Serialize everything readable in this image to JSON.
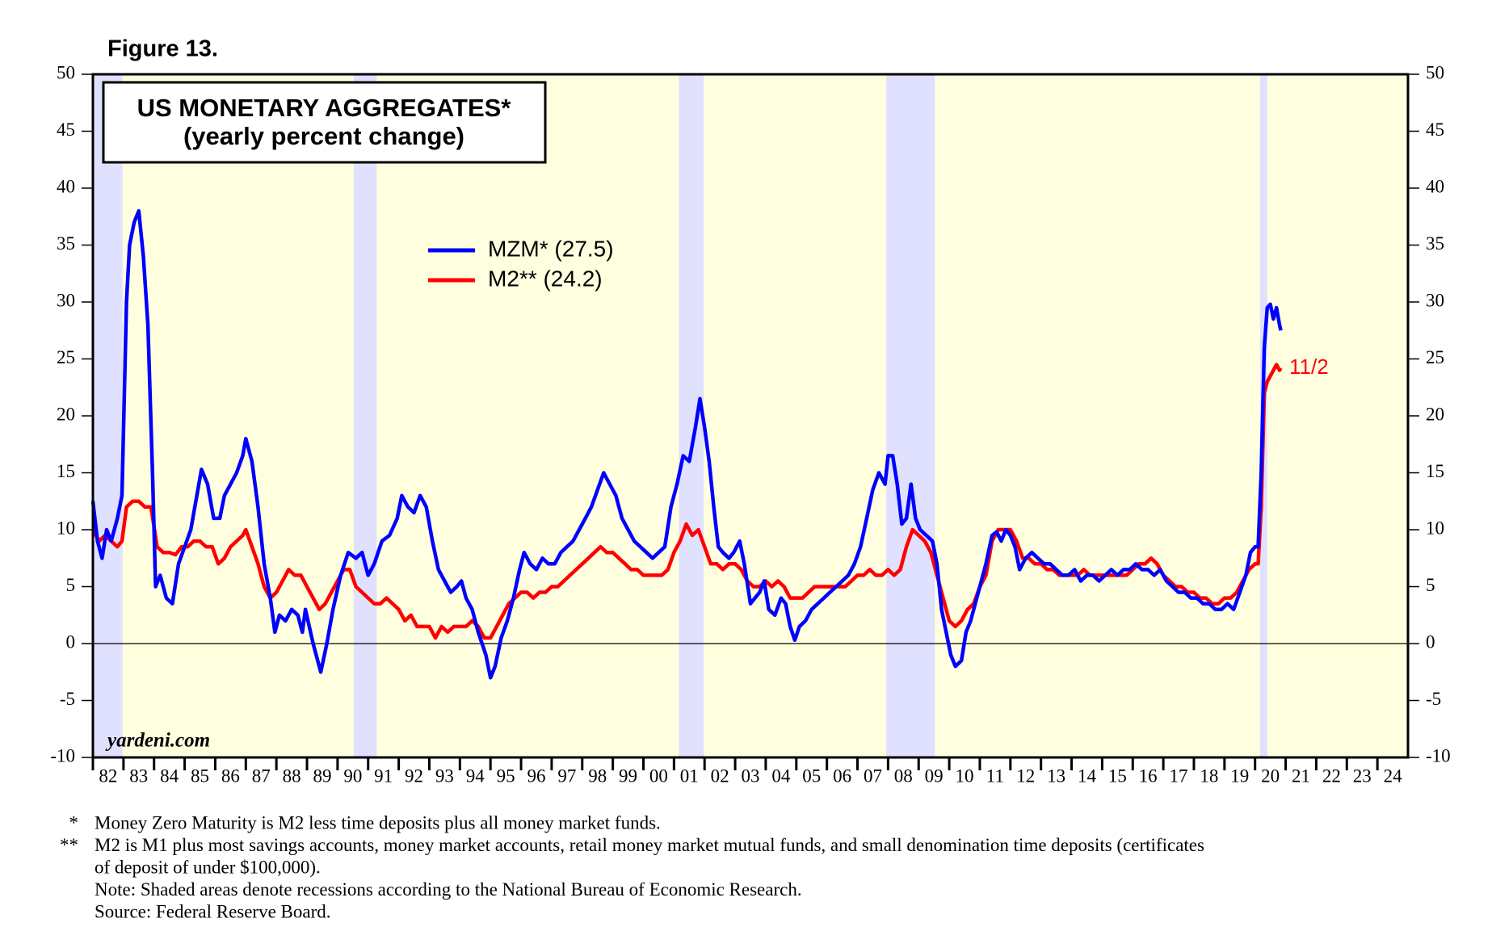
{
  "figure_label": "Figure 13.",
  "chart_data": {
    "type": "line",
    "title": "US MONETARY AGGREGATES*",
    "subtitle": "(yearly percent change)",
    "watermark": "yardeni.com",
    "annotation": {
      "text": "11/2",
      "color": "#ff0000"
    },
    "xlim": [
      1982,
      2025
    ],
    "xticks": [
      {
        "value": 1982,
        "label": "82"
      },
      {
        "value": 1983,
        "label": "83"
      },
      {
        "value": 1984,
        "label": "84"
      },
      {
        "value": 1985,
        "label": "85"
      },
      {
        "value": 1986,
        "label": "86"
      },
      {
        "value": 1987,
        "label": "87"
      },
      {
        "value": 1988,
        "label": "88"
      },
      {
        "value": 1989,
        "label": "89"
      },
      {
        "value": 1990,
        "label": "90"
      },
      {
        "value": 1991,
        "label": "91"
      },
      {
        "value": 1992,
        "label": "92"
      },
      {
        "value": 1993,
        "label": "93"
      },
      {
        "value": 1994,
        "label": "94"
      },
      {
        "value": 1995,
        "label": "95"
      },
      {
        "value": 1996,
        "label": "96"
      },
      {
        "value": 1997,
        "label": "97"
      },
      {
        "value": 1998,
        "label": "98"
      },
      {
        "value": 1999,
        "label": "99"
      },
      {
        "value": 2000,
        "label": "00"
      },
      {
        "value": 2001,
        "label": "01"
      },
      {
        "value": 2002,
        "label": "02"
      },
      {
        "value": 2003,
        "label": "03"
      },
      {
        "value": 2004,
        "label": "04"
      },
      {
        "value": 2005,
        "label": "05"
      },
      {
        "value": 2006,
        "label": "06"
      },
      {
        "value": 2007,
        "label": "07"
      },
      {
        "value": 2008,
        "label": "08"
      },
      {
        "value": 2009,
        "label": "09"
      },
      {
        "value": 2010,
        "label": "10"
      },
      {
        "value": 2011,
        "label": "11"
      },
      {
        "value": 2012,
        "label": "12"
      },
      {
        "value": 2013,
        "label": "13"
      },
      {
        "value": 2014,
        "label": "14"
      },
      {
        "value": 2015,
        "label": "15"
      },
      {
        "value": 2016,
        "label": "16"
      },
      {
        "value": 2017,
        "label": "17"
      },
      {
        "value": 2018,
        "label": "18"
      },
      {
        "value": 2019,
        "label": "19"
      },
      {
        "value": 2020,
        "label": "20"
      },
      {
        "value": 2021,
        "label": "21"
      },
      {
        "value": 2022,
        "label": "22"
      },
      {
        "value": 2023,
        "label": "23"
      },
      {
        "value": 2024,
        "label": "24"
      }
    ],
    "ylim": [
      -10,
      50
    ],
    "yticks": [
      -10,
      -5,
      0,
      5,
      10,
      15,
      20,
      25,
      30,
      35,
      40,
      45,
      50
    ],
    "y2lim": [
      -10,
      50
    ],
    "y2ticks": [
      -10,
      -5,
      0,
      5,
      10,
      15,
      20,
      25,
      30,
      35,
      40,
      45,
      50
    ],
    "background": "#ffffe0",
    "recession_color": "#e0e0ff",
    "recessions": [
      [
        1982,
        1982.97
      ],
      [
        1990.53,
        1991.28
      ],
      [
        2001.16,
        2001.97
      ],
      [
        2007.94,
        2009.53
      ],
      [
        2020.16,
        2020.4
      ]
    ],
    "series": [
      {
        "name": "MZM* (27.5)",
        "color": "#0000ff",
        "x": [
          1982.0,
          1982.15,
          1982.3,
          1982.45,
          1982.6,
          1982.8,
          1982.95,
          1983.1,
          1983.2,
          1983.35,
          1983.5,
          1983.65,
          1983.8,
          1983.95,
          1984.05,
          1984.2,
          1984.4,
          1984.6,
          1984.8,
          1985.0,
          1985.2,
          1985.4,
          1985.55,
          1985.75,
          1985.95,
          1986.15,
          1986.3,
          1986.5,
          1986.7,
          1986.9,
          1987.0,
          1987.2,
          1987.4,
          1987.6,
          1987.8,
          1987.95,
          1988.1,
          1988.3,
          1988.5,
          1988.7,
          1988.85,
          1988.95,
          1989.2,
          1989.45,
          1989.65,
          1989.85,
          1990.1,
          1990.35,
          1990.6,
          1990.8,
          1991.0,
          1991.2,
          1991.45,
          1991.7,
          1991.95,
          1992.1,
          1992.3,
          1992.5,
          1992.7,
          1992.9,
          1993.1,
          1993.3,
          1993.5,
          1993.7,
          1993.9,
          1994.05,
          1994.2,
          1994.4,
          1994.6,
          1994.85,
          1995.0,
          1995.15,
          1995.35,
          1995.55,
          1995.75,
          1995.95,
          1996.1,
          1996.3,
          1996.5,
          1996.7,
          1996.9,
          1997.1,
          1997.3,
          1997.5,
          1997.7,
          1997.9,
          1998.1,
          1998.3,
          1998.5,
          1998.7,
          1998.9,
          1999.1,
          1999.3,
          1999.5,
          1999.7,
          1999.9,
          2000.1,
          2000.3,
          2000.5,
          2000.7,
          2000.9,
          2001.1,
          2001.3,
          2001.5,
          2001.7,
          2001.85,
          2002.0,
          2002.15,
          2002.3,
          2002.45,
          2002.6,
          2002.8,
          2002.95,
          2003.15,
          2003.3,
          2003.5,
          2003.65,
          2003.8,
          2003.95,
          2004.1,
          2004.3,
          2004.5,
          2004.65,
          2004.8,
          2004.95,
          2005.1,
          2005.3,
          2005.5,
          2005.7,
          2005.9,
          2006.1,
          2006.3,
          2006.5,
          2006.7,
          2006.9,
          2007.1,
          2007.3,
          2007.5,
          2007.7,
          2007.9,
          2008.0,
          2008.15,
          2008.3,
          2008.45,
          2008.6,
          2008.75,
          2008.9,
          2009.05,
          2009.25,
          2009.45,
          2009.6,
          2009.75,
          2009.9,
          2010.05,
          2010.2,
          2010.4,
          2010.55,
          2010.7,
          2010.85,
          2011.0,
          2011.2,
          2011.4,
          2011.55,
          2011.7,
          2011.85,
          2012.0,
          2012.15,
          2012.3,
          2012.5,
          2012.7,
          2012.9,
          2013.1,
          2013.3,
          2013.5,
          2013.7,
          2013.9,
          2014.1,
          2014.3,
          2014.5,
          2014.7,
          2014.9,
          2015.1,
          2015.3,
          2015.5,
          2015.7,
          2015.9,
          2016.1,
          2016.3,
          2016.5,
          2016.7,
          2016.9,
          2017.1,
          2017.3,
          2017.5,
          2017.7,
          2017.9,
          2018.1,
          2018.3,
          2018.5,
          2018.7,
          2018.9,
          2019.1,
          2019.3,
          2019.5,
          2019.7,
          2019.85,
          2020.0,
          2020.1,
          2020.2,
          2020.3,
          2020.4,
          2020.5,
          2020.6,
          2020.7,
          2020.8,
          2020.84
        ],
        "values": [
          12.5,
          9,
          7.5,
          10,
          9,
          11,
          13,
          30,
          35,
          37,
          38,
          34,
          28,
          15,
          5,
          6,
          4,
          3.5,
          7,
          8.5,
          10,
          13,
          15.3,
          14,
          11,
          11,
          13,
          14,
          15,
          16.5,
          18,
          16,
          12,
          7,
          4,
          1,
          2.5,
          2,
          3,
          2.5,
          1,
          3,
          0,
          -2.5,
          0,
          3,
          6,
          8,
          7.5,
          8,
          6,
          7,
          9,
          9.5,
          11,
          13,
          12,
          11.5,
          13,
          12,
          9,
          6.5,
          5.5,
          4.5,
          5,
          5.5,
          4,
          3,
          1,
          -1,
          -3,
          -2,
          0.5,
          2,
          4,
          6.5,
          8,
          7,
          6.5,
          7.5,
          7,
          7,
          8,
          8.5,
          9,
          10,
          11,
          12,
          13.5,
          15,
          14,
          13,
          11,
          10,
          9,
          8.5,
          8,
          7.5,
          8,
          8.5,
          12,
          14,
          16.5,
          16,
          19,
          21.5,
          19,
          16,
          12,
          8.5,
          8,
          7.5,
          8,
          9,
          7,
          3.5,
          4,
          4.5,
          5.5,
          3,
          2.5,
          4,
          3.5,
          1.5,
          0.3,
          1.5,
          2,
          3,
          3.5,
          4,
          4.5,
          5,
          5.5,
          6,
          7,
          8.5,
          11,
          13.5,
          15,
          14,
          16.5,
          16.5,
          14,
          10.5,
          11,
          14,
          11,
          10,
          9.5,
          9,
          7,
          3,
          1,
          -1,
          -2,
          -1.5,
          1,
          2,
          3.5,
          5,
          7,
          9.5,
          9.8,
          9,
          10,
          9.5,
          8.5,
          6.5,
          7.5,
          8,
          7.5,
          7,
          7,
          6.5,
          6,
          6,
          6.5,
          5.5,
          6,
          6,
          5.5,
          6,
          6.5,
          6,
          6.5,
          6.5,
          7,
          6.5,
          6.5,
          6,
          6.5,
          5.5,
          5,
          4.5,
          4.5,
          4,
          4,
          3.5,
          3.5,
          3,
          3,
          3.5,
          3,
          4.5,
          6,
          8,
          8.5,
          8.5,
          15,
          26,
          29.5,
          29.8,
          28.5,
          29.5,
          28,
          27.5
        ]
      },
      {
        "name": "M2** (24.2)",
        "color": "#ff0000",
        "x": [
          1982.0,
          1982.2,
          1982.4,
          1982.6,
          1982.8,
          1982.95,
          1983.1,
          1983.3,
          1983.5,
          1983.7,
          1983.9,
          1984.1,
          1984.3,
          1984.5,
          1984.7,
          1984.9,
          1985.1,
          1985.3,
          1985.5,
          1985.7,
          1985.9,
          1986.1,
          1986.3,
          1986.5,
          1986.7,
          1986.9,
          1987.0,
          1987.2,
          1987.4,
          1987.6,
          1987.8,
          1988.0,
          1988.2,
          1988.4,
          1988.6,
          1988.8,
          1989.0,
          1989.2,
          1989.4,
          1989.6,
          1989.8,
          1990.0,
          1990.2,
          1990.4,
          1990.6,
          1990.8,
          1991.0,
          1991.2,
          1991.4,
          1991.6,
          1991.8,
          1992.0,
          1992.2,
          1992.4,
          1992.6,
          1992.8,
          1993.0,
          1993.2,
          1993.4,
          1993.6,
          1993.8,
          1994.0,
          1994.2,
          1994.4,
          1994.6,
          1994.8,
          1995.0,
          1995.2,
          1995.4,
          1995.6,
          1995.8,
          1996.0,
          1996.2,
          1996.4,
          1996.6,
          1996.8,
          1997.0,
          1997.2,
          1997.4,
          1997.6,
          1997.8,
          1998.0,
          1998.2,
          1998.4,
          1998.6,
          1998.8,
          1999.0,
          1999.2,
          1999.4,
          1999.6,
          1999.8,
          2000.0,
          2000.2,
          2000.4,
          2000.6,
          2000.8,
          2001.0,
          2001.2,
          2001.4,
          2001.6,
          2001.8,
          2002.0,
          2002.2,
          2002.4,
          2002.6,
          2002.8,
          2003.0,
          2003.2,
          2003.4,
          2003.6,
          2003.8,
          2004.0,
          2004.2,
          2004.4,
          2004.6,
          2004.8,
          2005.0,
          2005.2,
          2005.4,
          2005.6,
          2005.8,
          2006.0,
          2006.2,
          2006.4,
          2006.6,
          2006.8,
          2007.0,
          2007.2,
          2007.4,
          2007.6,
          2007.8,
          2008.0,
          2008.2,
          2008.4,
          2008.6,
          2008.8,
          2009.0,
          2009.2,
          2009.4,
          2009.6,
          2009.8,
          2010.0,
          2010.2,
          2010.4,
          2010.6,
          2010.8,
          2011.0,
          2011.2,
          2011.4,
          2011.6,
          2011.8,
          2012.0,
          2012.2,
          2012.4,
          2012.6,
          2012.8,
          2013.0,
          2013.2,
          2013.4,
          2013.6,
          2013.8,
          2014.0,
          2014.2,
          2014.4,
          2014.6,
          2014.8,
          2015.0,
          2015.2,
          2015.4,
          2015.6,
          2015.8,
          2016.0,
          2016.2,
          2016.4,
          2016.6,
          2016.8,
          2017.0,
          2017.2,
          2017.4,
          2017.6,
          2017.8,
          2018.0,
          2018.2,
          2018.4,
          2018.6,
          2018.8,
          2019.0,
          2019.2,
          2019.4,
          2019.6,
          2019.8,
          2020.0,
          2020.1,
          2020.2,
          2020.3,
          2020.4,
          2020.5,
          2020.6,
          2020.7,
          2020.8,
          2020.84
        ],
        "values": [
          10,
          9,
          9.5,
          9,
          8.5,
          9,
          12,
          12.5,
          12.5,
          12,
          12,
          8.5,
          8,
          8,
          7.8,
          8.5,
          8.5,
          9,
          9,
          8.5,
          8.5,
          7,
          7.5,
          8.5,
          9,
          9.5,
          10,
          8.5,
          7,
          5,
          4,
          4.5,
          5.5,
          6.5,
          6,
          6,
          5,
          4,
          3,
          3.5,
          4.5,
          5.5,
          6.5,
          6.5,
          5,
          4.5,
          4,
          3.5,
          3.5,
          4,
          3.5,
          3,
          2,
          2.5,
          1.5,
          1.5,
          1.5,
          0.5,
          1.5,
          1,
          1.5,
          1.5,
          1.5,
          2,
          1.5,
          0.5,
          0.5,
          1.5,
          2.5,
          3.5,
          4,
          4.5,
          4.5,
          4,
          4.5,
          4.5,
          5,
          5,
          5.5,
          6,
          6.5,
          7,
          7.5,
          8,
          8.5,
          8,
          8,
          7.5,
          7,
          6.5,
          6.5,
          6,
          6,
          6,
          6,
          6.5,
          8,
          9,
          10.5,
          9.5,
          10,
          8.5,
          7,
          7,
          6.5,
          7,
          7,
          6.5,
          5.5,
          5,
          5,
          5.5,
          5,
          5.5,
          5,
          4,
          4,
          4,
          4.5,
          5,
          5,
          5,
          5,
          5,
          5,
          5.5,
          6,
          6,
          6.5,
          6,
          6,
          6.5,
          6,
          6.5,
          8.5,
          10,
          9.5,
          9,
          8,
          6,
          4,
          2,
          1.5,
          2,
          3,
          3.5,
          5,
          6,
          9,
          10,
          10,
          10,
          9,
          7.5,
          7.5,
          7,
          7,
          6.5,
          6.5,
          6,
          6,
          6,
          6,
          6.5,
          6,
          6,
          6,
          6,
          6,
          6,
          6,
          6.5,
          7,
          7,
          7.5,
          7,
          6,
          5.5,
          5,
          5,
          4.5,
          4.5,
          4,
          4,
          3.5,
          3.5,
          4,
          4,
          4.5,
          5.5,
          6.5,
          7,
          7,
          12,
          22,
          23,
          23.5,
          24,
          24.5,
          24,
          24.2
        ]
      }
    ],
    "footnotes": [
      {
        "marker": "*",
        "text": "Money Zero Maturity is M2 less time deposits plus all money market funds."
      },
      {
        "marker": "**",
        "text": "M2 is M1 plus most savings accounts, money market accounts, retail money market mutual funds, and small denomination time deposits (certificates"
      },
      {
        "text": "of deposit of under $100,000)."
      },
      {
        "text": "Note: Shaded areas denote recessions according to the National Bureau of Economic Research."
      },
      {
        "text": "Source: Federal Reserve Board."
      }
    ]
  }
}
